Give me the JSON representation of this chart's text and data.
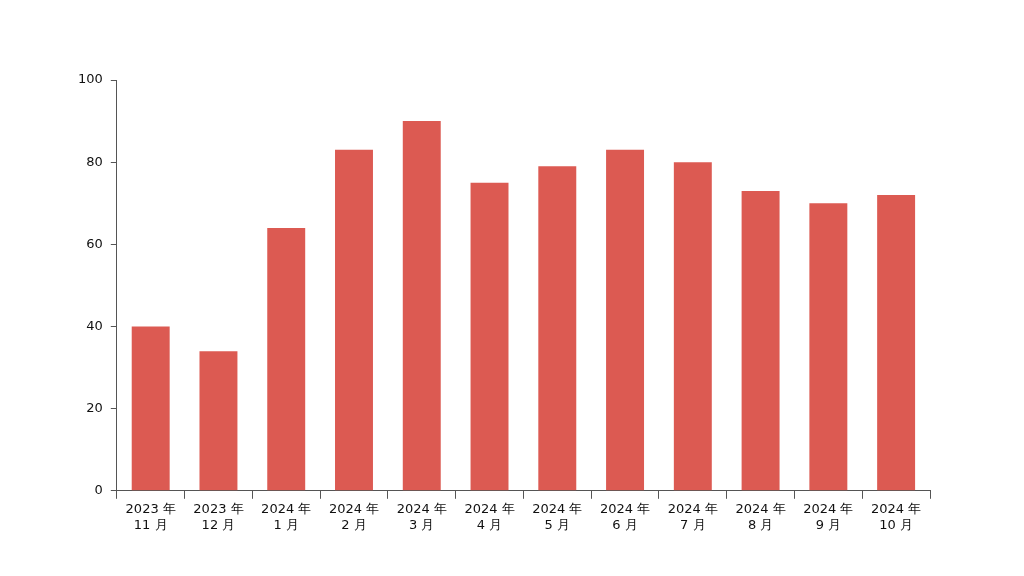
{
  "chart_data": {
    "type": "bar",
    "categories": [
      "2023 年\n11 月",
      "2023 年\n12 月",
      "2024 年\n1 月",
      "2024 年\n2 月",
      "2024 年\n3 月",
      "2024 年\n4 月",
      "2024 年\n5 月",
      "2024 年\n6 月",
      "2024 年\n7 月",
      "2024 年\n8 月",
      "2024 年\n9 月",
      "2024 年\n10 月"
    ],
    "values": [
      40,
      34,
      64,
      83,
      90,
      75,
      79,
      83,
      80,
      73,
      70,
      72
    ],
    "color": "#dc5a52",
    "ylim": [
      0,
      100
    ],
    "yticks": [
      0,
      20,
      40,
      60,
      80,
      100
    ],
    "grid": false,
    "legend": false
  }
}
